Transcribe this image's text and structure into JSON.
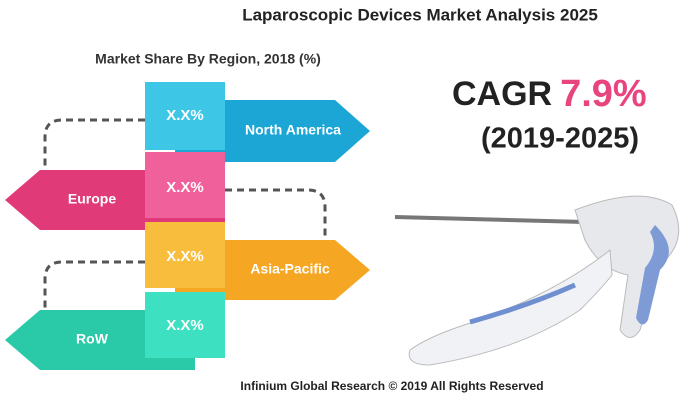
{
  "header": {
    "title": "Laparoscopic Devices Market Analysis 2025",
    "subtitle": "Market Share By Region, 2018 (%)"
  },
  "regions": [
    {
      "label": "North America",
      "value": "X.X%"
    },
    {
      "label": "Europe",
      "value": "X.X%"
    },
    {
      "label": "Asia-Pacific",
      "value": "X.X%"
    },
    {
      "label": "RoW",
      "value": "X.X%"
    }
  ],
  "cagr": {
    "label": "CAGR",
    "value": "7.9%",
    "period": "(2019-2025)"
  },
  "footer": "Infinium Global Research © 2019 All Rights Reserved"
}
